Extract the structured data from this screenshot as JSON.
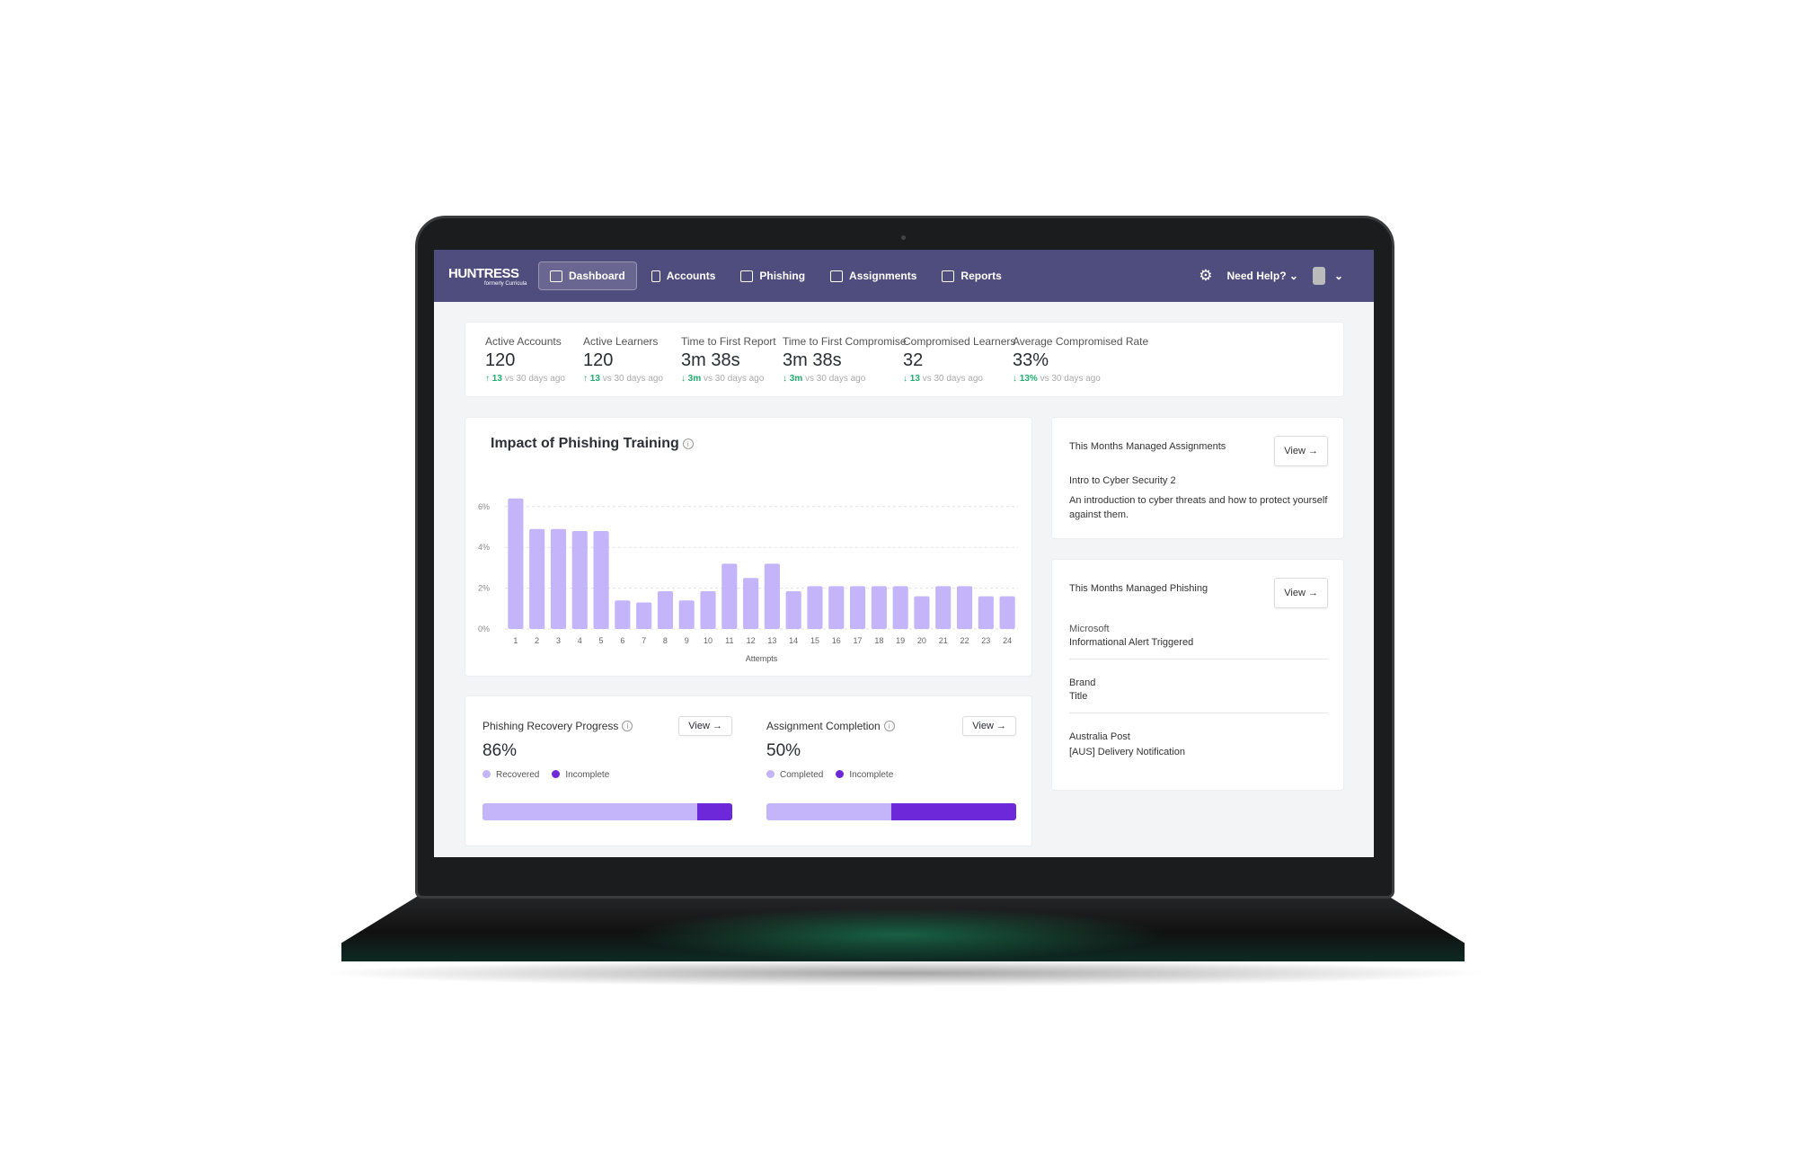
{
  "brand": {
    "name": "HUNTRESS",
    "subtitle": "formerly Curricula"
  },
  "nav": {
    "items": [
      {
        "label": "Dashboard",
        "icon": "dashboard-icon",
        "active": true
      },
      {
        "label": "Accounts",
        "icon": "building-icon"
      },
      {
        "label": "Phishing",
        "icon": "mail-icon"
      },
      {
        "label": "Assignments",
        "icon": "folder-icon"
      },
      {
        "label": "Reports",
        "icon": "table-icon"
      }
    ],
    "help": "Need Help?",
    "settings_icon": "gear-icon"
  },
  "stats": [
    {
      "label": "Active Accounts",
      "value": "120",
      "delta": "13",
      "direction": "up",
      "note": "vs 30 days ago"
    },
    {
      "label": "Active Learners",
      "value": "120",
      "delta": "13",
      "direction": "up",
      "note": "vs 30 days ago"
    },
    {
      "label": "Time to First Report",
      "value": "3m 38s",
      "delta": "3m",
      "direction": "down",
      "note": "vs 30 days ago"
    },
    {
      "label": "Time to First Compromise",
      "value": "3m 38s",
      "delta": "3m",
      "direction": "down",
      "note": "vs 30 days ago"
    },
    {
      "label": "Compromised Learners",
      "value": "32",
      "delta": "13",
      "direction": "down",
      "note": "vs 30 days ago"
    },
    {
      "label": "Average Compromised Rate",
      "value": "33%",
      "delta": "13%",
      "direction": "down",
      "note": "vs 30 days ago"
    }
  ],
  "chart_data": {
    "type": "bar",
    "title": "Impact of Phishing Training",
    "xlabel": "Attempts",
    "ylabel": "",
    "categories": [
      "1",
      "2",
      "3",
      "4",
      "5",
      "6",
      "7",
      "8",
      "9",
      "10",
      "11",
      "12",
      "13",
      "14",
      "15",
      "16",
      "17",
      "18",
      "19",
      "20",
      "21",
      "22",
      "23",
      "24"
    ],
    "values": [
      6.4,
      4.9,
      4.9,
      4.8,
      4.8,
      1.4,
      1.3,
      1.85,
      1.4,
      1.85,
      3.2,
      2.5,
      3.2,
      1.85,
      2.1,
      2.1,
      2.1,
      2.1,
      2.1,
      1.6,
      2.1,
      2.1,
      1.6,
      1.6
    ],
    "yticks": [
      "0%",
      "2%",
      "4%",
      "6%"
    ],
    "ylim": [
      0,
      6.5
    ],
    "grid": true,
    "color": "#c4b5fa"
  },
  "progress": [
    {
      "title": "Phishing Recovery Progress",
      "value": "86%",
      "fraction": 0.86,
      "legend": [
        "Recovered",
        "Incomplete"
      ],
      "view": "View"
    },
    {
      "title": "Assignment Completion",
      "value": "50%",
      "fraction": 0.5,
      "legend": [
        "Completed",
        "Incomplete"
      ],
      "view": "View"
    }
  ],
  "colors": {
    "light": "#c4b5fa",
    "dark": "#6d28d9",
    "nav": "#4f4d7e",
    "positive": "#1fae6e"
  },
  "assignments": {
    "title": "This Months Managed Assignments",
    "view": "View",
    "name": "Intro to Cyber Security 2",
    "description": "An introduction to cyber threats and how to protect yourself against them."
  },
  "phishing": {
    "title": "This Months Managed Phishing",
    "view": "View",
    "items": [
      {
        "brand": "Microsoft",
        "title": "Informational Alert Triggered"
      },
      {
        "brand": "Brand",
        "title": "Title"
      },
      {
        "brand": "Australia Post",
        "title": "[AUS] Delivery Notification"
      }
    ]
  }
}
